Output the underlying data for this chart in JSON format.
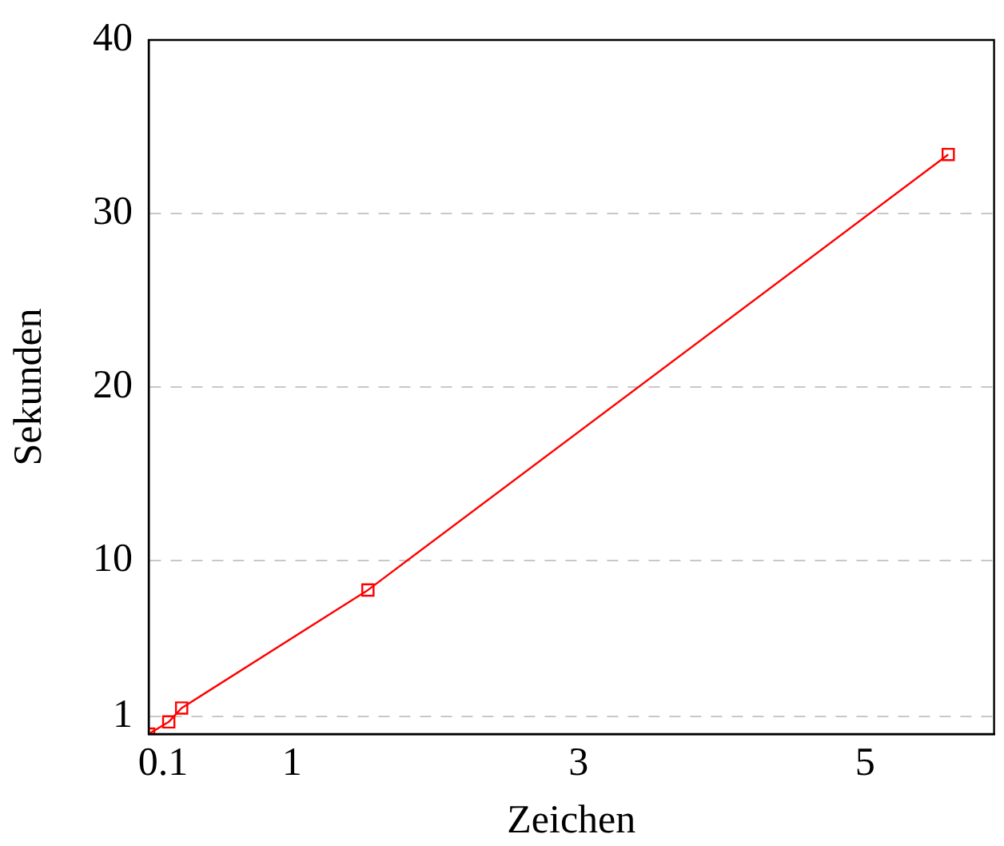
{
  "chart_data": {
    "type": "line",
    "xlabel": "Zeichen",
    "ylabel": "Sekunden",
    "x": [
      0,
      0.14,
      0.23,
      1.53,
      5.58
    ],
    "series": [
      {
        "color": "#ff0000",
        "values": [
          0,
          0.7,
          1.5,
          8.3,
          33.4
        ]
      }
    ],
    "xlim": [
      0,
      5.9
    ],
    "xticks": [
      0.1,
      1,
      3,
      5
    ],
    "ylim": [
      0,
      40
    ],
    "yticks": [
      1,
      10,
      20,
      30,
      40
    ],
    "grid": "y",
    "legend": false,
    "marker": "square",
    "line_style": "solid"
  }
}
